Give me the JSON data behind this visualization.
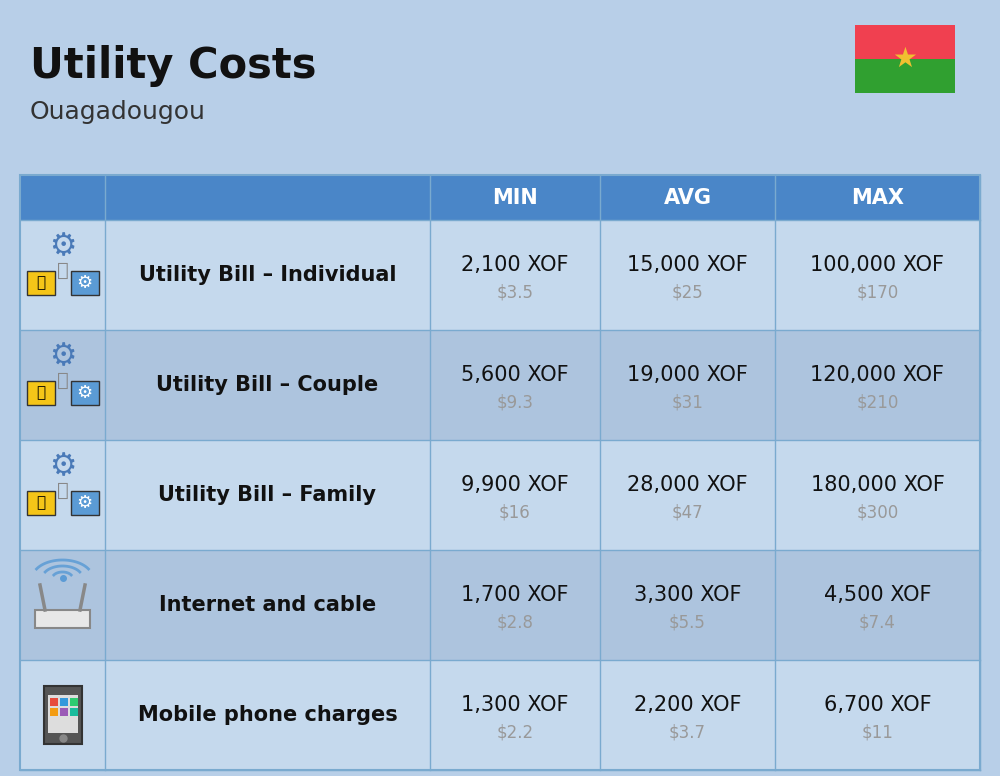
{
  "title": "Utility Costs",
  "subtitle": "Ouagadougou",
  "background_color": "#b8cfe8",
  "header_bg_color": "#4a86c8",
  "header_text_color": "#ffffff",
  "row_bg_color_odd": "#c5d9ed",
  "row_bg_color_even": "#adc4de",
  "cell_border_color": "#7aaacf",
  "columns": [
    "MIN",
    "AVG",
    "MAX"
  ],
  "rows": [
    {
      "label": "Utility Bill – Individual",
      "min_xof": "2,100 XOF",
      "min_usd": "$3.5",
      "avg_xof": "15,000 XOF",
      "avg_usd": "$25",
      "max_xof": "100,000 XOF",
      "max_usd": "$170",
      "icon": "utility"
    },
    {
      "label": "Utility Bill – Couple",
      "min_xof": "5,600 XOF",
      "min_usd": "$9.3",
      "avg_xof": "19,000 XOF",
      "avg_usd": "$31",
      "max_xof": "120,000 XOF",
      "max_usd": "$210",
      "icon": "utility"
    },
    {
      "label": "Utility Bill – Family",
      "min_xof": "9,900 XOF",
      "min_usd": "$16",
      "avg_xof": "28,000 XOF",
      "avg_usd": "$47",
      "max_xof": "180,000 XOF",
      "max_usd": "$300",
      "icon": "utility"
    },
    {
      "label": "Internet and cable",
      "min_xof": "1,700 XOF",
      "min_usd": "$2.8",
      "avg_xof": "3,300 XOF",
      "avg_usd": "$5.5",
      "max_xof": "4,500 XOF",
      "max_usd": "$7.4",
      "icon": "internet"
    },
    {
      "label": "Mobile phone charges",
      "min_xof": "1,300 XOF",
      "min_usd": "$2.2",
      "avg_xof": "2,200 XOF",
      "avg_usd": "$3.7",
      "max_xof": "6,700 XOF",
      "max_usd": "$11",
      "icon": "mobile"
    }
  ],
  "flag_colors": {
    "top": "#f04050",
    "bottom": "#30a030",
    "star": "#f0c030"
  },
  "title_fontsize": 30,
  "subtitle_fontsize": 18,
  "header_fontsize": 15,
  "label_fontsize": 15,
  "value_fontsize": 15,
  "usd_fontsize": 12,
  "usd_color": "#999999"
}
